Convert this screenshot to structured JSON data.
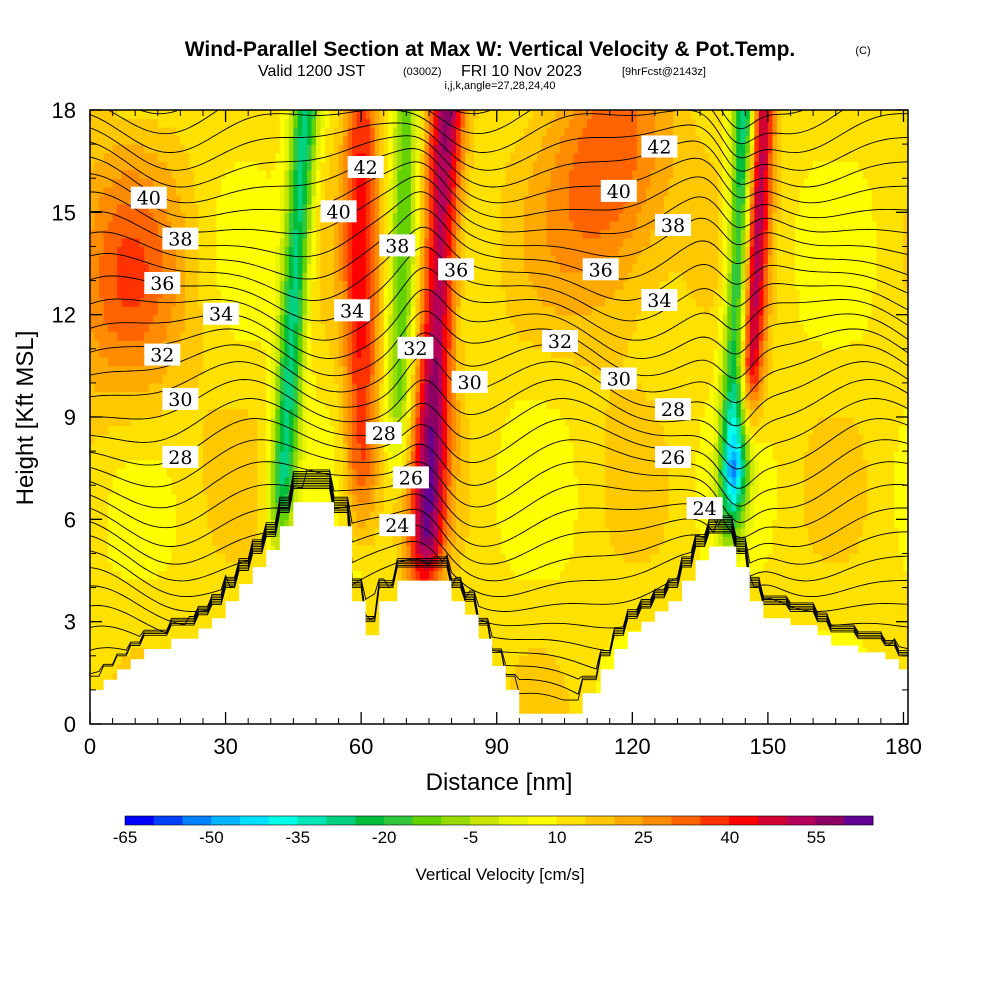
{
  "header": {
    "title": "Wind-Parallel Section at Max W: Vertical Velocity & Pot.Temp.",
    "copyright": "(C)",
    "valid_main": "Valid 1200 JST",
    "valid_z": "(0300Z)",
    "valid_date": "FRI 10 Nov 2023",
    "forecast": "[9hrFcst@2143z]",
    "indices": "i,j,k,angle=27,28,24,40"
  },
  "chart_data": {
    "type": "heatmap",
    "title": "Wind-Parallel Section at Max W: Vertical Velocity & Pot.Temp.",
    "xlabel": "Distance [nm]",
    "ylabel": "Height [Kft MSL]",
    "xlim": [
      0,
      181
    ],
    "ylim": [
      0,
      18
    ],
    "x_ticks": [
      0,
      30,
      60,
      90,
      120,
      150,
      180
    ],
    "y_ticks": [
      0,
      3,
      6,
      9,
      12,
      15,
      18
    ],
    "grid": false,
    "colorbar": {
      "label": "Vertical Velocity [cm/s]",
      "tick_labels": [
        "-65",
        "-50",
        "-35",
        "-20",
        "-5",
        "10",
        "25",
        "40",
        "55"
      ],
      "tick_values": [
        -65,
        -50,
        -35,
        -20,
        -5,
        10,
        25,
        40,
        55
      ],
      "colors": [
        "#0000ff",
        "#0041ff",
        "#0082ff",
        "#00b4ff",
        "#00e1ff",
        "#00ffe6",
        "#00e6b4",
        "#00d282",
        "#00be3c",
        "#32c83c",
        "#64d200",
        "#96dc00",
        "#c8e600",
        "#e6f500",
        "#ffff00",
        "#ffe100",
        "#ffc800",
        "#ffaa00",
        "#ff8c00",
        "#ff6400",
        "#ff3200",
        "#ff0000",
        "#d20032",
        "#b4005a",
        "#8c0064",
        "#640096"
      ]
    },
    "terrain": [
      [
        0,
        1.0
      ],
      [
        3,
        1.0
      ],
      [
        3,
        1.3
      ],
      [
        6,
        1.3
      ],
      [
        6,
        1.6
      ],
      [
        9,
        1.6
      ],
      [
        9,
        1.9
      ],
      [
        12,
        1.9
      ],
      [
        12,
        2.2
      ],
      [
        18,
        2.2
      ],
      [
        18,
        2.5
      ],
      [
        24,
        2.5
      ],
      [
        24,
        2.8
      ],
      [
        27,
        2.8
      ],
      [
        27,
        3.1
      ],
      [
        30,
        3.1
      ],
      [
        30,
        3.6
      ],
      [
        33,
        3.6
      ],
      [
        33,
        4.1
      ],
      [
        36,
        4.1
      ],
      [
        36,
        4.6
      ],
      [
        39,
        4.6
      ],
      [
        39,
        5.1
      ],
      [
        42,
        5.1
      ],
      [
        42,
        5.8
      ],
      [
        45,
        5.8
      ],
      [
        45,
        6.5
      ],
      [
        54,
        6.5
      ],
      [
        54,
        5.8
      ],
      [
        58,
        5.8
      ],
      [
        58,
        3.6
      ],
      [
        61,
        3.6
      ],
      [
        61,
        2.6
      ],
      [
        64,
        2.6
      ],
      [
        64,
        3.6
      ],
      [
        68,
        3.6
      ],
      [
        68,
        4.2
      ],
      [
        80,
        4.2
      ],
      [
        80,
        3.6
      ],
      [
        83,
        3.6
      ],
      [
        83,
        3.2
      ],
      [
        86,
        3.2
      ],
      [
        86,
        2.5
      ],
      [
        89,
        2.5
      ],
      [
        89,
        1.7
      ],
      [
        92,
        1.7
      ],
      [
        92,
        1.0
      ],
      [
        95,
        1.0
      ],
      [
        95,
        0.3
      ],
      [
        101,
        0.3
      ],
      [
        101,
        0.3
      ],
      [
        109,
        0.3
      ],
      [
        109,
        0.9
      ],
      [
        113,
        0.9
      ],
      [
        113,
        1.6
      ],
      [
        116,
        1.6
      ],
      [
        116,
        2.2
      ],
      [
        119,
        2.2
      ],
      [
        119,
        2.7
      ],
      [
        122,
        2.7
      ],
      [
        122,
        3.0
      ],
      [
        125,
        3.0
      ],
      [
        125,
        3.3
      ],
      [
        128,
        3.3
      ],
      [
        128,
        3.6
      ],
      [
        131,
        3.6
      ],
      [
        131,
        4.2
      ],
      [
        134,
        4.2
      ],
      [
        134,
        4.8
      ],
      [
        137,
        4.8
      ],
      [
        137,
        5.2
      ],
      [
        143,
        5.2
      ],
      [
        143,
        4.6
      ],
      [
        146,
        4.6
      ],
      [
        146,
        3.6
      ],
      [
        149,
        3.6
      ],
      [
        149,
        3.1
      ],
      [
        155,
        3.1
      ],
      [
        155,
        2.9
      ],
      [
        161,
        2.9
      ],
      [
        161,
        2.6
      ],
      [
        164,
        2.6
      ],
      [
        164,
        2.3
      ],
      [
        170,
        2.3
      ],
      [
        170,
        2.1
      ],
      [
        176,
        2.1
      ],
      [
        176,
        1.9
      ],
      [
        179,
        1.9
      ],
      [
        179,
        1.6
      ],
      [
        181,
        1.6
      ]
    ],
    "velocity_features": [
      {
        "kind": "updraft",
        "center_x": 74,
        "base_height": 4,
        "width_nm": 4,
        "tilt_nm_per_kft": 0.35,
        "peak": 45
      },
      {
        "kind": "updraft",
        "center_x": 145,
        "base_height": 9,
        "width_nm": 3,
        "tilt_nm_per_kft": 0.35,
        "peak": 60
      },
      {
        "kind": "updraft",
        "center_x": 60,
        "base_height": 6,
        "width_nm": 4,
        "tilt_nm_per_kft": 0.0,
        "peak": 28
      },
      {
        "kind": "downdraft",
        "center_x": 42,
        "base_height": 5.5,
        "width_nm": 3,
        "tilt_nm_per_kft": 0.45,
        "peak": -40
      },
      {
        "kind": "downdraft",
        "center_x": 142,
        "base_height": 6,
        "width_nm": 3,
        "tilt_nm_per_kft": 0.3,
        "peak": -60
      },
      {
        "kind": "downdraft",
        "center_x": 68,
        "base_height": 8,
        "width_nm": 3,
        "tilt_nm_per_kft": 0.2,
        "peak": -25
      },
      {
        "kind": "warm_region",
        "center_x": 8,
        "center_height": 13,
        "peak": 20
      },
      {
        "kind": "warm_region",
        "center_x": 115,
        "center_height": 16,
        "peak": 25
      }
    ],
    "isentropes": {
      "labels": [
        {
          "text": "40",
          "x": 13,
          "y": 15.4
        },
        {
          "text": "38",
          "x": 20,
          "y": 14.2
        },
        {
          "text": "36",
          "x": 16,
          "y": 12.9
        },
        {
          "text": "34",
          "x": 29,
          "y": 12.0
        },
        {
          "text": "32",
          "x": 16,
          "y": 10.8
        },
        {
          "text": "30",
          "x": 20,
          "y": 9.5
        },
        {
          "text": "28",
          "x": 20,
          "y": 7.8
        },
        {
          "text": "42",
          "x": 61,
          "y": 16.3
        },
        {
          "text": "40",
          "x": 55,
          "y": 15.0
        },
        {
          "text": "38",
          "x": 68,
          "y": 14.0
        },
        {
          "text": "36",
          "x": 81,
          "y": 13.3
        },
        {
          "text": "34",
          "x": 58,
          "y": 12.1
        },
        {
          "text": "32",
          "x": 72,
          "y": 11.0
        },
        {
          "text": "30",
          "x": 84,
          "y": 10.0
        },
        {
          "text": "28",
          "x": 65,
          "y": 8.5
        },
        {
          "text": "26",
          "x": 71,
          "y": 7.2
        },
        {
          "text": "24",
          "x": 68,
          "y": 5.8
        },
        {
          "text": "42",
          "x": 126,
          "y": 16.9
        },
        {
          "text": "40",
          "x": 117,
          "y": 15.6
        },
        {
          "text": "38",
          "x": 129,
          "y": 14.6
        },
        {
          "text": "36",
          "x": 113,
          "y": 13.3
        },
        {
          "text": "34",
          "x": 126,
          "y": 12.4
        },
        {
          "text": "32",
          "x": 104,
          "y": 11.2
        },
        {
          "text": "30",
          "x": 117,
          "y": 10.1
        },
        {
          "text": "28",
          "x": 129,
          "y": 9.2
        },
        {
          "text": "26",
          "x": 129,
          "y": 7.8
        },
        {
          "text": "24",
          "x": 136,
          "y": 6.3
        }
      ]
    }
  }
}
